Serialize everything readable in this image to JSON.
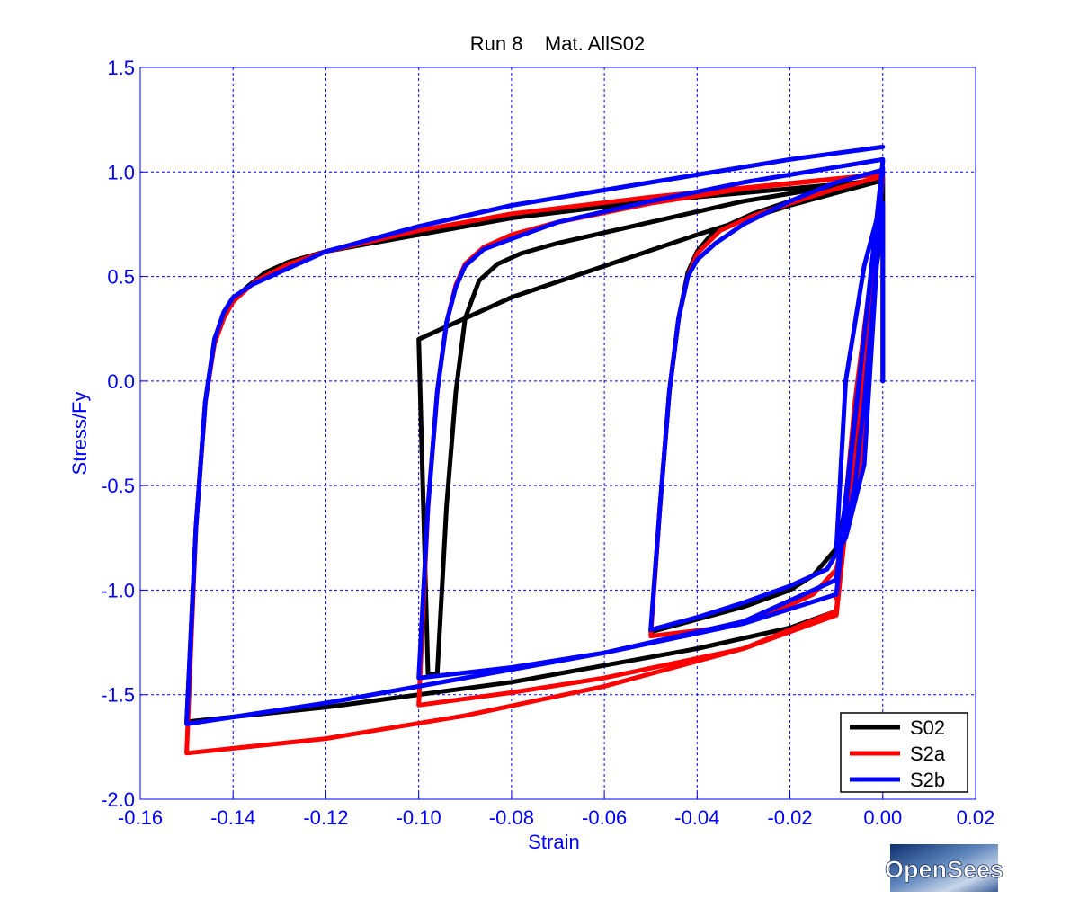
{
  "colors": {
    "axis": "#0000ff",
    "grid": "#0000ff",
    "background": "#ffffff",
    "title": "#000000"
  },
  "chart_data": {
    "type": "line",
    "title": "Run 8    Mat. AllS02",
    "xlabel": "Strain",
    "ylabel": "Stress/Fy",
    "xlim": [
      -0.16,
      0.02
    ],
    "ylim": [
      -2.0,
      1.5
    ],
    "xticks": [
      -0.16,
      -0.14,
      -0.12,
      -0.1,
      -0.08,
      -0.06,
      -0.04,
      -0.02,
      0.0,
      0.02
    ],
    "xtick_labels": [
      "-0.16",
      "-0.14",
      "-0.12",
      "-0.10",
      "-0.08",
      "-0.06",
      "-0.04",
      "-0.02",
      "0.00",
      "0.02"
    ],
    "yticks": [
      -2.0,
      -1.5,
      -1.0,
      -0.5,
      0.0,
      0.5,
      1.0,
      1.5
    ],
    "ytick_labels": [
      "-2.0",
      "-1.5",
      "-1.0",
      "-0.5",
      "0.0",
      "0.5",
      "1.0",
      "1.5"
    ],
    "grid": true,
    "legend_position": "bottom-right",
    "series": [
      {
        "name": "S02",
        "color": "#000000",
        "x": [
          0,
          0,
          -0.003,
          -0.005,
          -0.008,
          -0.01,
          -0.01,
          -0.005,
          -0.001,
          0,
          -0.005,
          -0.01,
          -0.015,
          -0.02,
          -0.03,
          -0.04,
          -0.05,
          -0.05,
          -0.048,
          -0.046,
          -0.044,
          -0.042,
          -0.04,
          -0.037,
          -0.033,
          -0.028,
          -0.02,
          -0.01,
          0,
          0,
          -0.01,
          -0.02,
          -0.04,
          -0.06,
          -0.08,
          -0.1,
          -0.1,
          -0.098,
          -0.096,
          -0.094,
          -0.092,
          -0.09,
          -0.087,
          -0.083,
          -0.078,
          -0.07,
          -0.05,
          -0.03,
          0,
          0,
          -0.01,
          -0.02,
          -0.04,
          -0.06,
          -0.08,
          -0.1,
          -0.12,
          -0.15,
          -0.15,
          -0.148,
          -0.146,
          -0.144,
          -0.142,
          -0.14,
          -0.137,
          -0.133,
          -0.128,
          -0.12,
          -0.1,
          -0.08,
          -0.05,
          0
        ],
        "y": [
          0,
          0.96,
          0.4,
          -0.2,
          -0.6,
          -0.95,
          -0.95,
          0.0,
          0.6,
          0.97,
          -0.3,
          -0.8,
          -0.93,
          -1.0,
          -1.08,
          -1.14,
          -1.2,
          -1.2,
          -0.6,
          -0.05,
          0.3,
          0.52,
          0.62,
          0.7,
          0.75,
          0.8,
          0.86,
          0.91,
          0.96,
          0.96,
          0.9,
          0.84,
          0.7,
          0.55,
          0.4,
          0.2,
          0.2,
          -1.4,
          -1.4,
          -0.6,
          -0.05,
          0.3,
          0.48,
          0.56,
          0.61,
          0.66,
          0.76,
          0.86,
          0.97,
          0.96,
          -1.1,
          -1.18,
          -1.28,
          -1.36,
          -1.44,
          -1.5,
          -1.56,
          -1.63,
          -1.63,
          -0.7,
          -0.1,
          0.2,
          0.32,
          0.38,
          0.45,
          0.52,
          0.57,
          0.62,
          0.7,
          0.78,
          0.86,
          0.96
        ]
      },
      {
        "name": "S2a",
        "color": "#ff0000",
        "x": [
          0,
          -0.003,
          -0.005,
          -0.008,
          -0.01,
          -0.01,
          -0.006,
          -0.002,
          0,
          -0.005,
          -0.01,
          -0.015,
          -0.025,
          -0.035,
          -0.05,
          -0.05,
          -0.048,
          -0.046,
          -0.044,
          -0.042,
          -0.04,
          -0.035,
          -0.028,
          -0.02,
          -0.01,
          0,
          -0.01,
          -0.03,
          -0.06,
          -0.08,
          -0.1,
          -0.1,
          -0.098,
          -0.096,
          -0.094,
          -0.092,
          -0.09,
          -0.086,
          -0.08,
          -0.07,
          -0.05,
          -0.03,
          0,
          -0.01,
          -0.03,
          -0.06,
          -0.09,
          -0.12,
          -0.15,
          -0.15,
          -0.148,
          -0.146,
          -0.144,
          -0.142,
          -0.14,
          -0.135,
          -0.128,
          -0.12,
          -0.1,
          -0.08,
          -0.05,
          0
        ],
        "y": [
          0.97,
          0.3,
          -0.3,
          -0.7,
          -1.04,
          -1.04,
          -0.1,
          0.6,
          0.99,
          -0.4,
          -0.9,
          -1.02,
          -1.12,
          -1.18,
          -1.22,
          -1.22,
          -0.6,
          -0.05,
          0.3,
          0.5,
          0.61,
          0.72,
          0.79,
          0.85,
          0.92,
          0.98,
          -1.1,
          -1.28,
          -1.42,
          -1.49,
          -1.55,
          -1.55,
          -0.6,
          -0.05,
          0.28,
          0.46,
          0.56,
          0.64,
          0.7,
          0.76,
          0.85,
          0.92,
          0.99,
          -1.12,
          -1.28,
          -1.46,
          -1.6,
          -1.71,
          -1.78,
          -1.78,
          -0.7,
          -0.1,
          0.18,
          0.3,
          0.38,
          0.48,
          0.56,
          0.62,
          0.72,
          0.8,
          0.88,
          0.99
        ]
      },
      {
        "name": "S2b",
        "color": "#0000ff",
        "x": [
          0,
          0,
          -0.002,
          -0.004,
          -0.006,
          -0.008,
          -0.01,
          -0.01,
          -0.008,
          -0.004,
          -0.001,
          0,
          -0.004,
          -0.008,
          -0.012,
          -0.02,
          -0.03,
          -0.04,
          -0.05,
          -0.05,
          -0.048,
          -0.046,
          -0.044,
          -0.042,
          -0.04,
          -0.036,
          -0.03,
          -0.02,
          -0.01,
          0,
          0,
          -0.01,
          -0.03,
          -0.06,
          -0.08,
          -0.1,
          -0.1,
          -0.098,
          -0.096,
          -0.094,
          -0.092,
          -0.09,
          -0.086,
          -0.08,
          -0.07,
          -0.05,
          -0.03,
          0,
          0,
          -0.01,
          -0.03,
          -0.06,
          -0.09,
          -0.12,
          -0.15,
          -0.15,
          -0.148,
          -0.146,
          -0.144,
          -0.142,
          -0.14,
          -0.136,
          -0.13,
          -0.12,
          -0.1,
          -0.08,
          -0.05,
          -0.02,
          0
        ],
        "y": [
          0,
          0.85,
          0.4,
          -0.1,
          -0.5,
          -0.7,
          -0.8,
          -0.8,
          0.0,
          0.55,
          0.8,
          1.02,
          -0.4,
          -0.75,
          -0.9,
          -0.98,
          -1.06,
          -1.13,
          -1.19,
          -1.19,
          -0.6,
          -0.05,
          0.3,
          0.5,
          0.58,
          0.66,
          0.75,
          0.86,
          0.95,
          1.01,
          1.0,
          -0.95,
          -1.15,
          -1.3,
          -1.37,
          -1.42,
          -1.42,
          -0.6,
          -0.05,
          0.28,
          0.45,
          0.55,
          0.63,
          0.68,
          0.76,
          0.86,
          0.95,
          1.06,
          1.05,
          -1.02,
          -1.16,
          -1.3,
          -1.42,
          -1.54,
          -1.64,
          -1.64,
          -0.7,
          -0.1,
          0.2,
          0.33,
          0.4,
          0.46,
          0.52,
          0.62,
          0.74,
          0.84,
          0.95,
          1.06,
          1.12
        ]
      }
    ]
  },
  "logo": {
    "text": "OpenSees"
  }
}
